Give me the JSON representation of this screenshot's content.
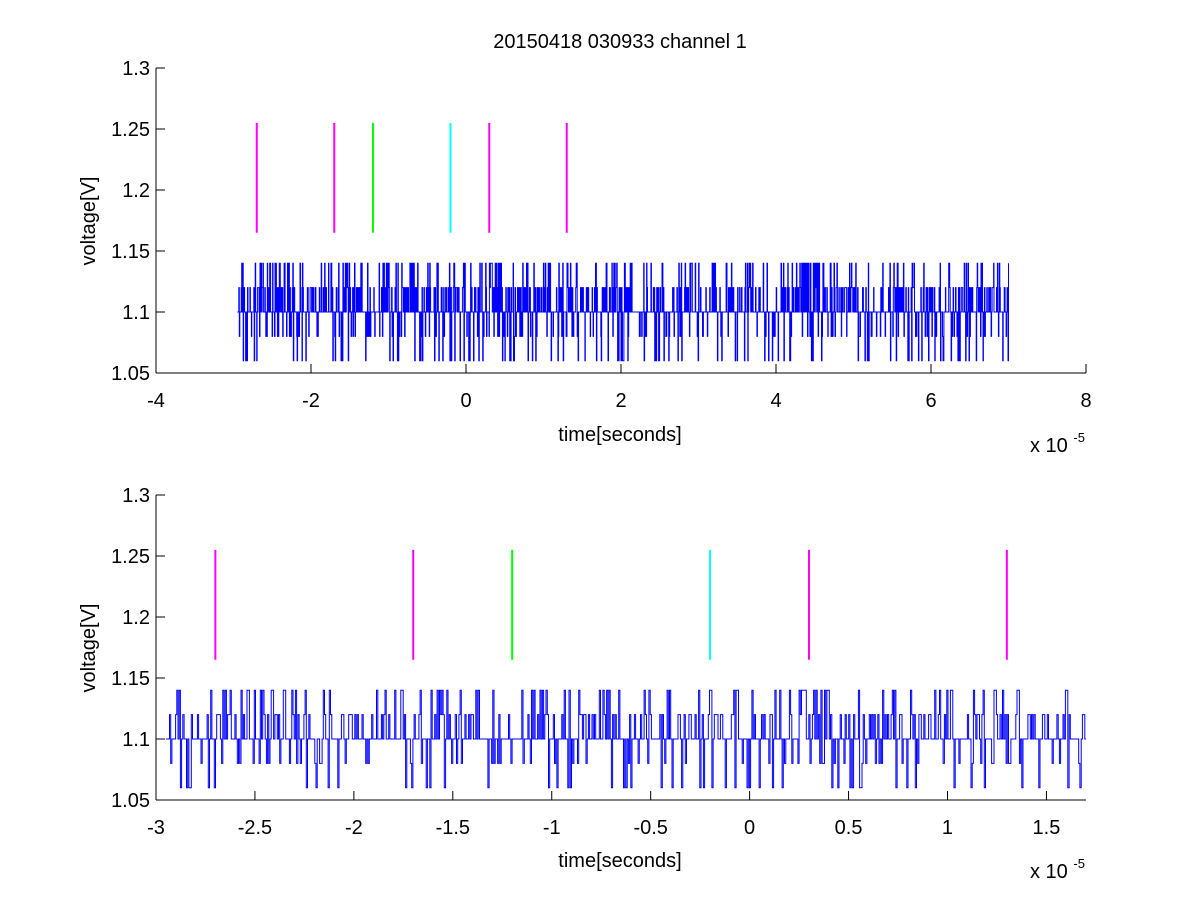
{
  "figure": {
    "title": "20150418 030933 channel 1",
    "background": "#ffffff"
  },
  "chart_data": [
    {
      "type": "line",
      "xlabel": "time[seconds]",
      "ylabel": "voltage[V]",
      "xlim": [
        -4e-05,
        8e-05
      ],
      "ylim": [
        1.05,
        1.3
      ],
      "x_exponent_label": "x 10",
      "x_exponent_sup": "-5",
      "x_ticks": [
        -4,
        -2,
        0,
        2,
        4,
        6,
        8
      ],
      "x_tick_labels": [
        "-4",
        "-2",
        "0",
        "2",
        "4",
        "6",
        "8"
      ],
      "y_ticks": [
        1.05,
        1.1,
        1.15,
        1.2,
        1.25,
        1.3
      ],
      "y_tick_labels": [
        "1.05",
        "1.1",
        "1.15",
        "1.2",
        "1.25",
        "1.3"
      ],
      "series": [
        {
          "kind": "signal",
          "color": "#0000ff",
          "x_range": [
            -2.95e-05,
            7e-05
          ],
          "levels": [
            1.06,
            1.08,
            1.1,
            1.12,
            1.14
          ],
          "baseline": 1.1,
          "description_values": "quantized noisy voltage around 1.1 V"
        }
      ],
      "markers": [
        {
          "x": -2.7e-05,
          "y": [
            1.165,
            1.255
          ],
          "color": "#ff00ff"
        },
        {
          "x": -1.7e-05,
          "y": [
            1.165,
            1.255
          ],
          "color": "#ff00ff"
        },
        {
          "x": -1.2e-05,
          "y": [
            1.165,
            1.255
          ],
          "color": "#00ff00"
        },
        {
          "x": -2e-06,
          "y": [
            1.165,
            1.255
          ],
          "color": "#00ffff"
        },
        {
          "x": 3e-06,
          "y": [
            1.165,
            1.255
          ],
          "color": "#ff00ff"
        },
        {
          "x": 1.3e-05,
          "y": [
            1.165,
            1.255
          ],
          "color": "#ff00ff"
        }
      ],
      "grid": false
    },
    {
      "type": "line",
      "xlabel": "time[seconds]",
      "ylabel": "voltage[V]",
      "xlim": [
        -3e-05,
        1.7e-05
      ],
      "ylim": [
        1.05,
        1.3
      ],
      "x_exponent_label": "x 10",
      "x_exponent_sup": "-5",
      "x_ticks": [
        -3,
        -2.5,
        -2,
        -1.5,
        -1,
        -0.5,
        0,
        0.5,
        1,
        1.5
      ],
      "x_tick_labels": [
        "-3",
        "-2.5",
        "-2",
        "-1.5",
        "-1",
        "-0.5",
        "0",
        "0.5",
        "1",
        "1.5"
      ],
      "y_ticks": [
        1.05,
        1.1,
        1.15,
        1.2,
        1.25,
        1.3
      ],
      "y_tick_labels": [
        "1.05",
        "1.1",
        "1.15",
        "1.2",
        "1.25",
        "1.3"
      ],
      "series": [
        {
          "kind": "signal",
          "color": "#0000ff",
          "x_range": [
            -2.95e-05,
            1.7e-05
          ],
          "levels": [
            1.06,
            1.08,
            1.1,
            1.12,
            1.14
          ],
          "baseline": 1.1,
          "description_values": "quantized noisy voltage around 1.1 V"
        }
      ],
      "markers": [
        {
          "x": -2.7e-05,
          "y": [
            1.165,
            1.255
          ],
          "color": "#ff00ff"
        },
        {
          "x": -1.7e-05,
          "y": [
            1.165,
            1.255
          ],
          "color": "#ff00ff"
        },
        {
          "x": -1.2e-05,
          "y": [
            1.165,
            1.255
          ],
          "color": "#00ff00"
        },
        {
          "x": -2e-06,
          "y": [
            1.165,
            1.255
          ],
          "color": "#00ffff"
        },
        {
          "x": 3e-06,
          "y": [
            1.165,
            1.255
          ],
          "color": "#ff00ff"
        },
        {
          "x": 1.3e-05,
          "y": [
            1.165,
            1.255
          ],
          "color": "#ff00ff"
        }
      ],
      "grid": false
    }
  ]
}
